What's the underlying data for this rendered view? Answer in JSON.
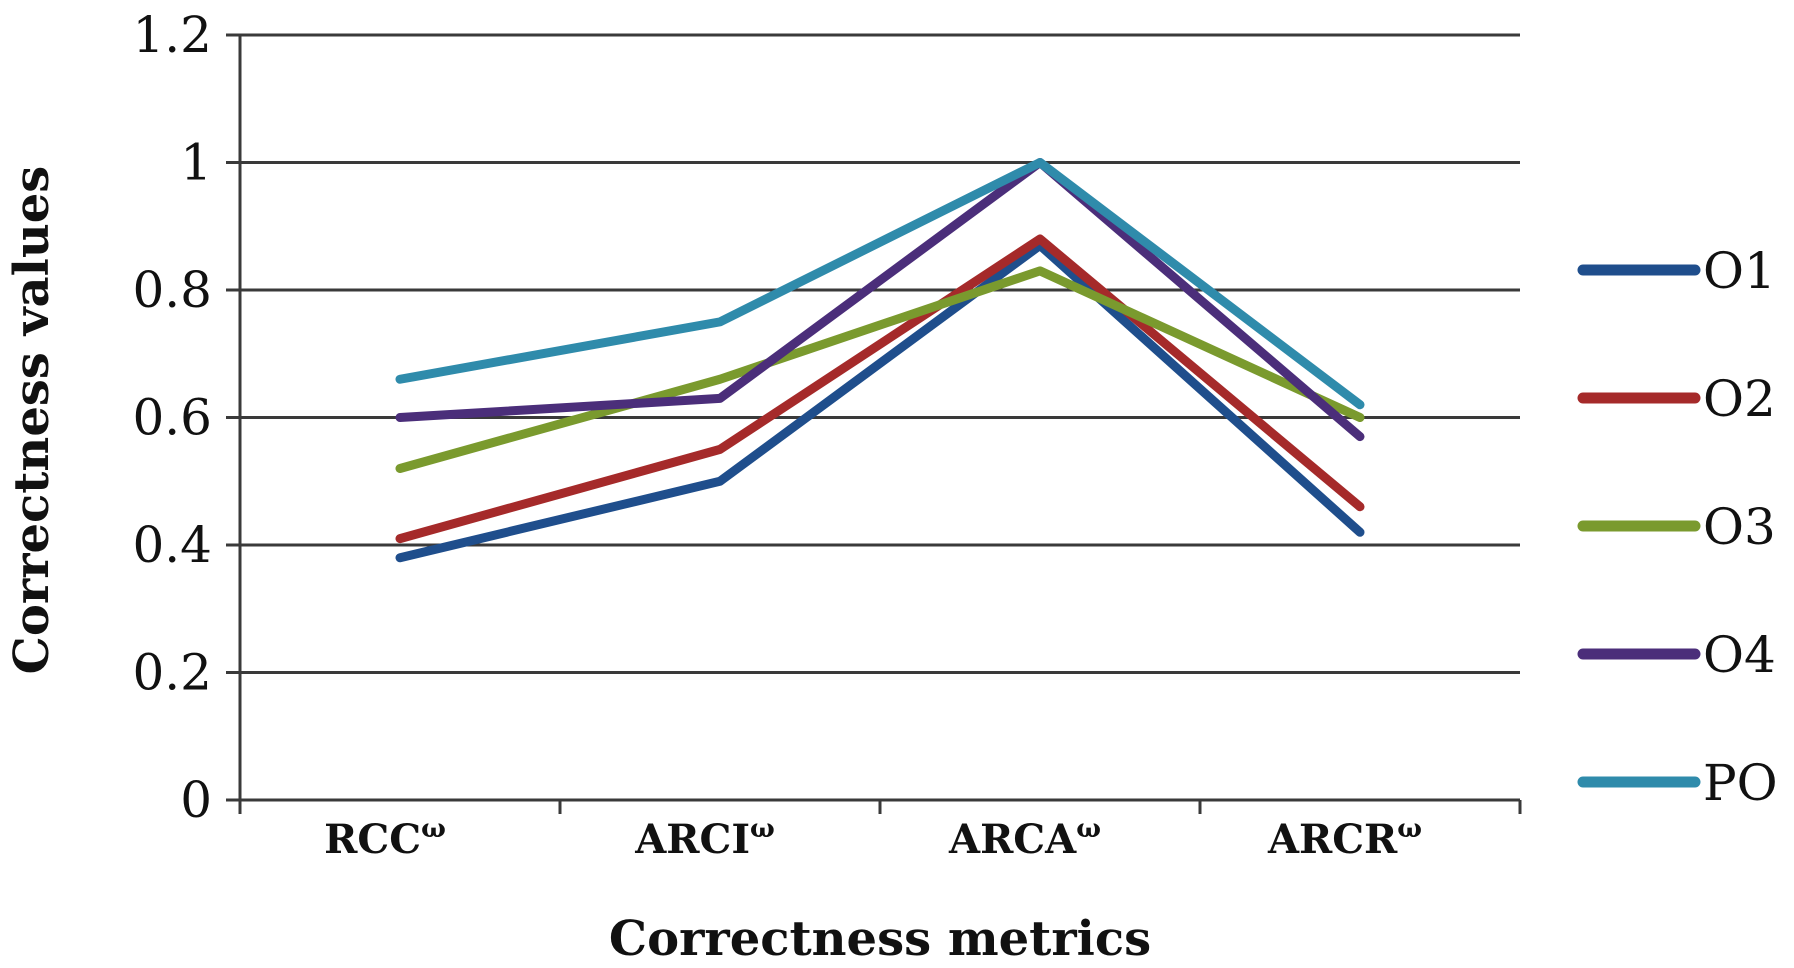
{
  "chart_data": {
    "type": "line",
    "title": "",
    "xlabel": "Correctness metrics",
    "ylabel": "Correctness values",
    "ylim": [
      0,
      1.2
    ],
    "yticks": [
      0,
      0.2,
      0.4,
      0.6,
      0.8,
      1,
      1.2
    ],
    "ytick_labels": [
      "0",
      "0.2",
      "0.4",
      "0.6",
      "0.8",
      "1",
      "1.2"
    ],
    "grid": true,
    "legend_position": "right",
    "categories": [
      {
        "base": "RCC",
        "sup": "ω"
      },
      {
        "base": "ARCI",
        "sup": "ω"
      },
      {
        "base": "ARCA",
        "sup": "ω"
      },
      {
        "base": "ARCR",
        "sup": "ω"
      }
    ],
    "series": [
      {
        "name": "O1",
        "color": "#1f4e8c",
        "values": [
          0.38,
          0.5,
          0.87,
          0.42
        ]
      },
      {
        "name": "O2",
        "color": "#a52a2a",
        "values": [
          0.41,
          0.55,
          0.88,
          0.46
        ]
      },
      {
        "name": "O3",
        "color": "#7a9a2e",
        "values": [
          0.52,
          0.66,
          0.83,
          0.6
        ]
      },
      {
        "name": "O4",
        "color": "#4b2e7a",
        "values": [
          0.6,
          0.63,
          1.0,
          0.57
        ]
      },
      {
        "name": "PO",
        "color": "#2f8bab",
        "values": [
          0.66,
          0.75,
          1.0,
          0.62
        ]
      }
    ]
  }
}
